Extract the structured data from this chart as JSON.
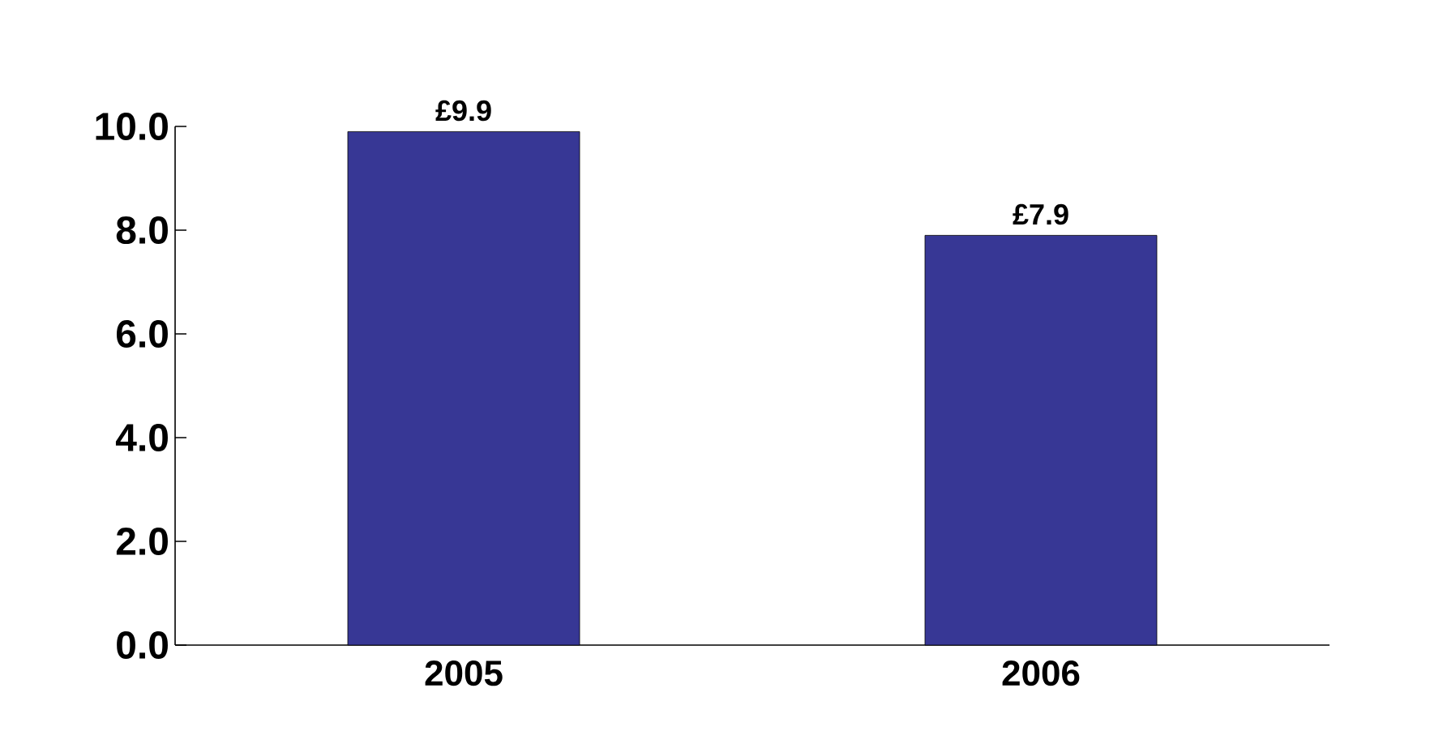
{
  "chart_data": {
    "type": "bar",
    "categories": [
      "2005",
      "2006"
    ],
    "values": [
      9.9,
      7.9
    ],
    "color": "#373795",
    "value_labels": [
      "£9.9",
      "£7.9"
    ],
    "ylim": [
      0,
      10
    ],
    "yticks": [
      {
        "value": 0,
        "label": "0.0"
      },
      {
        "value": 2,
        "label": "2.0"
      },
      {
        "value": 4,
        "label": "4.0"
      },
      {
        "value": 6,
        "label": "6.0"
      },
      {
        "value": 8,
        "label": "8.0"
      },
      {
        "value": 10,
        "label": "10.0"
      }
    ],
    "grid": false
  }
}
